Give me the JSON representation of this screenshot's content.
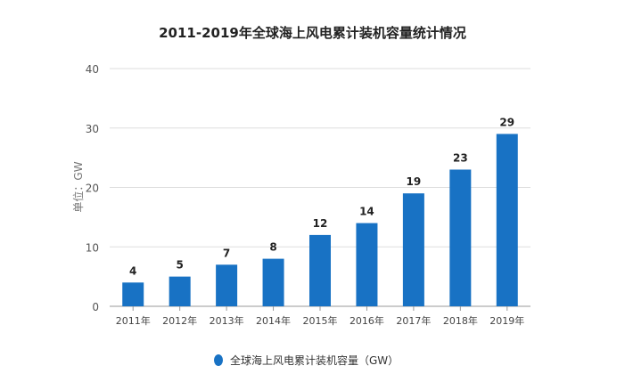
{
  "chart_data": {
    "type": "bar",
    "title": "2011-2019年全球海上风电累计装机容量统计情况",
    "ylabel": "单位：GW",
    "xlabel": "",
    "categories": [
      "2011年",
      "2012年",
      "2013年",
      "2014年",
      "2015年",
      "2016年",
      "2017年",
      "2018年",
      "2019年"
    ],
    "series": [
      {
        "name": "全球海上风电累计装机容量（GW）",
        "values": [
          4,
          5,
          7,
          8,
          12,
          14,
          19,
          23,
          29
        ],
        "color": "#1872c4"
      }
    ],
    "ylim": [
      0,
      40
    ],
    "yticks": [
      0,
      10,
      20,
      30,
      40
    ],
    "grid": true,
    "legend": "bottom"
  }
}
